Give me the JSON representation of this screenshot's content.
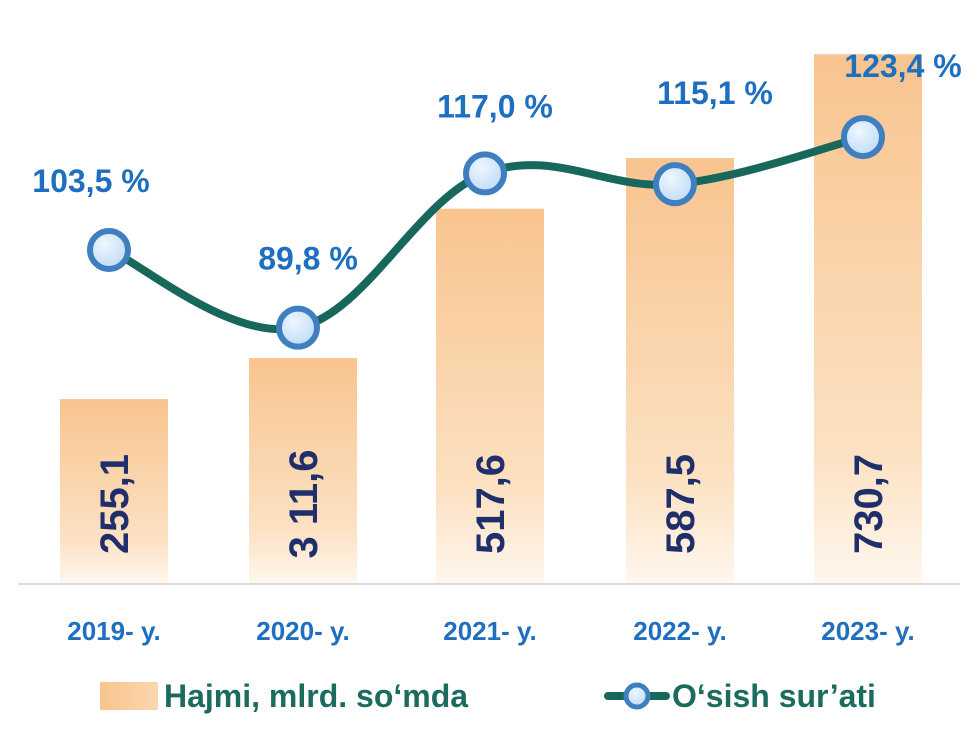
{
  "chart_data": {
    "type": "bar",
    "categories": [
      "2019- y.",
      "2020- y.",
      "2021- y.",
      "2022- y.",
      "2023- y."
    ],
    "series": [
      {
        "name": "Hajmi, mlrd. so‘mda",
        "type": "bar",
        "values": [
          255.1,
          311.6,
          517.6,
          587.5,
          730.7
        ],
        "labels": [
          "255,1",
          "3 11,6",
          "517,6",
          "587,5",
          "730,7"
        ]
      },
      {
        "name": "O‘sish sur’ati",
        "type": "line",
        "values": [
          103.5,
          89.8,
          117.0,
          115.1,
          123.4
        ],
        "labels": [
          "103,5 %",
          "89,8 %",
          "117,0 %",
          "115,1 %",
          "123,4 %"
        ]
      }
    ],
    "bar_ylim": [
      0,
      800
    ],
    "line_ylim": [
      70,
      125
    ],
    "legend_position": "bottom",
    "grid": false
  },
  "colors": {
    "bar_top": "#f8c48f",
    "bar_bottom": "#fff7ee",
    "line": "#17675b",
    "marker_fill": "#cfe6fb",
    "marker_stroke": "#3f7fc0",
    "bar_label": "#1f2f6b",
    "tick_label": "#1f6fc0",
    "pct_label": "#1f6fc0",
    "legend_text": "#1b6b5f"
  }
}
